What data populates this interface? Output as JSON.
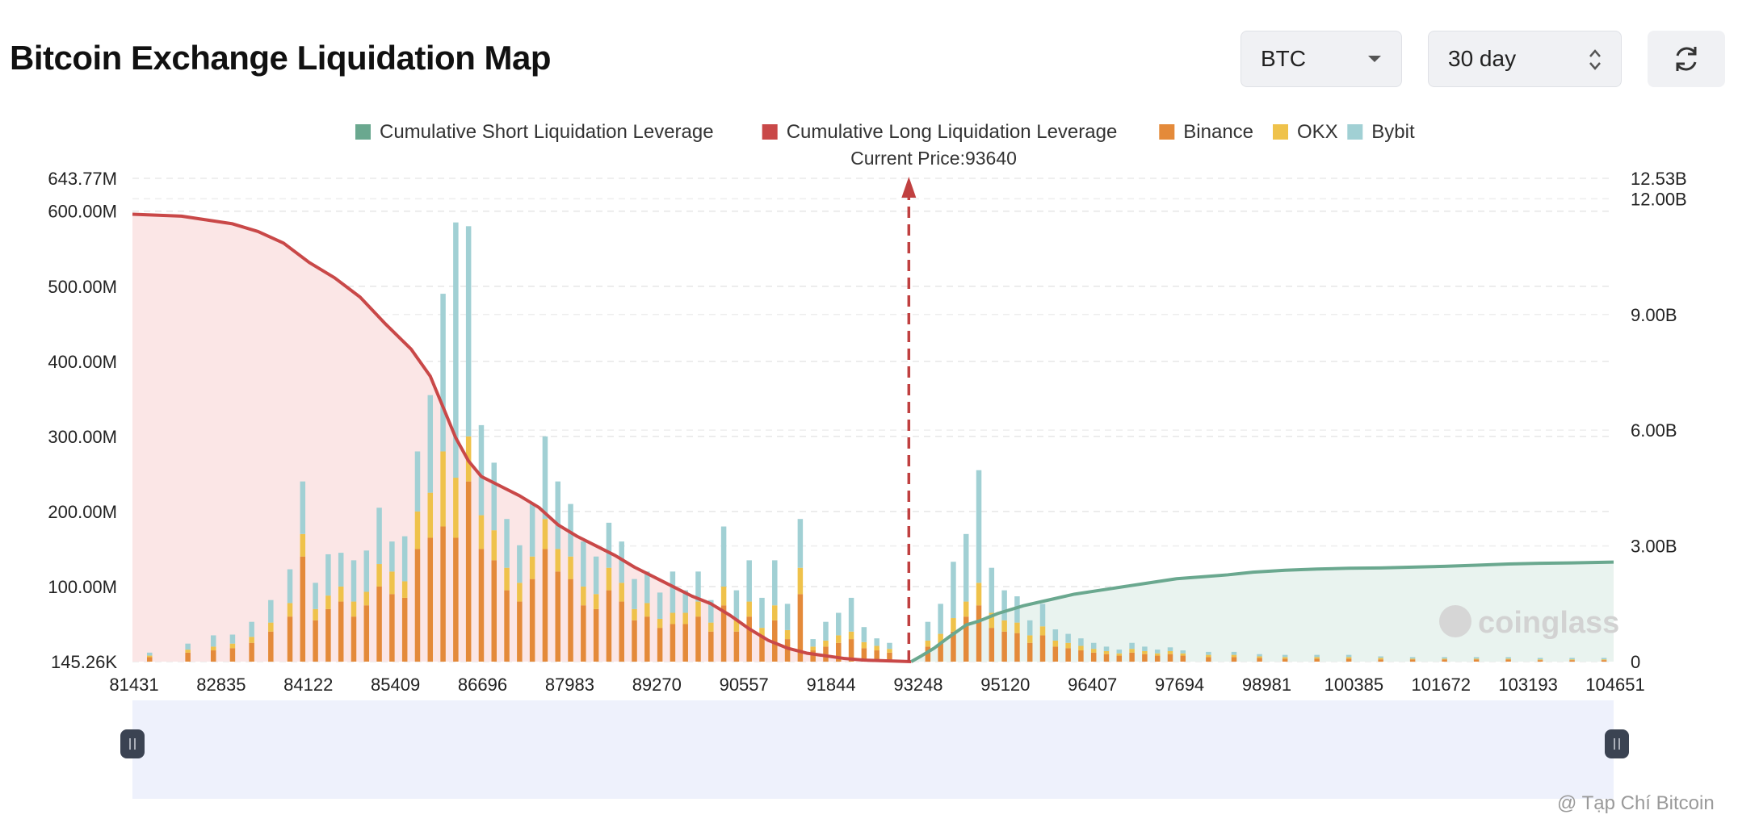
{
  "header": {
    "title": "Bitcoin Exchange Liquidation Map",
    "coin_select": {
      "value": "BTC",
      "icon": "chevron-down-icon"
    },
    "range_select": {
      "value": "30 day",
      "icon": "up-down-stepper-icon"
    },
    "refresh_icon": "refresh-icon"
  },
  "watermark": {
    "text": "@ Tạp Chí Bitcoin"
  },
  "chart_logo": {
    "text": "coinglass"
  },
  "colors": {
    "short": "#6aa88f",
    "long": "#c94848",
    "binance": "#e48a3a",
    "okx": "#efc24b",
    "bybit": "#a1d0d4",
    "long_fill": "#fbe6e6",
    "short_fill": "#e9f3ef",
    "zoom_bg": "#eef1fc",
    "handle": "#3b4352"
  },
  "chart_data": {
    "type": "bar",
    "title": "",
    "current_price_label": "Current Price:93640",
    "current_price": 93640,
    "legend": [
      {
        "label": "Cumulative Short Liquidation Leverage",
        "color": "#6aa88f"
      },
      {
        "label": "Cumulative Long Liquidation Leverage",
        "color": "#c94848"
      },
      {
        "label": "Binance",
        "color": "#e48a3a"
      },
      {
        "label": "OKX",
        "color": "#efc24b"
      },
      {
        "label": "Bybit",
        "color": "#a1d0d4"
      }
    ],
    "x_range": [
      81431,
      104651
    ],
    "x_ticks": [
      "81431",
      "82835",
      "84122",
      "85409",
      "86696",
      "87983",
      "89270",
      "90557",
      "91844",
      "93248",
      "95120",
      "96407",
      "97694",
      "98981",
      "100385",
      "101672",
      "103193",
      "104651"
    ],
    "y_left_range_millions": [
      0,
      643.77
    ],
    "y_left_ticks": [
      {
        "value": 0,
        "label": "145.26K"
      },
      {
        "value": 100,
        "label": "100.00M"
      },
      {
        "value": 200,
        "label": "200.00M"
      },
      {
        "value": 300,
        "label": "300.00M"
      },
      {
        "value": 400,
        "label": "400.00M"
      },
      {
        "value": 500,
        "label": "500.00M"
      },
      {
        "value": 600,
        "label": "600.00M"
      },
      {
        "value": 643.77,
        "label": "643.77M"
      }
    ],
    "y_right_range_billions": [
      0,
      12.53
    ],
    "y_right_ticks": [
      {
        "value": 0,
        "label": "0"
      },
      {
        "value": 3,
        "label": "3.00B"
      },
      {
        "value": 6,
        "label": "6.00B"
      },
      {
        "value": 9,
        "label": "9.00B"
      },
      {
        "value": 12,
        "label": "12.00B"
      },
      {
        "value": 12.53,
        "label": "12.53B"
      }
    ],
    "exchange_bars_millions": {
      "price_bins": [
        81700,
        82300,
        82700,
        83000,
        83300,
        83600,
        83900,
        84100,
        84300,
        84500,
        84700,
        84900,
        85100,
        85300,
        85500,
        85700,
        85900,
        86100,
        86300,
        86500,
        86700,
        86900,
        87100,
        87300,
        87500,
        87700,
        87900,
        88100,
        88300,
        88500,
        88700,
        88900,
        89100,
        89300,
        89500,
        89700,
        89900,
        90100,
        90300,
        90500,
        90700,
        90900,
        91100,
        91300,
        91500,
        91700,
        91900,
        92100,
        92300,
        92500,
        92700,
        92900,
        93100,
        93300,
        93900,
        94100,
        94300,
        94500,
        94700,
        94900,
        95100,
        95300,
        95500,
        95700,
        95900,
        96100,
        96300,
        96500,
        96700,
        96900,
        97100,
        97300,
        97500,
        97700,
        97900,
        98300,
        98700,
        99100,
        99500,
        100000,
        100500,
        101000,
        101500,
        102000,
        102500,
        103000,
        103500,
        104000,
        104500
      ],
      "binance": [
        6,
        12,
        15,
        18,
        25,
        40,
        60,
        140,
        55,
        70,
        80,
        60,
        75,
        100,
        90,
        85,
        150,
        165,
        180,
        165,
        240,
        150,
        135,
        95,
        80,
        110,
        150,
        120,
        110,
        75,
        70,
        95,
        80,
        55,
        60,
        45,
        50,
        50,
        60,
        40,
        75,
        40,
        60,
        35,
        55,
        30,
        90,
        15,
        20,
        25,
        30,
        18,
        15,
        12,
        20,
        25,
        40,
        60,
        75,
        45,
        40,
        38,
        25,
        35,
        20,
        18,
        15,
        12,
        10,
        8,
        12,
        10,
        8,
        10,
        8,
        6,
        6,
        5,
        4,
        4,
        4,
        3,
        3,
        3,
        3,
        3,
        2,
        2,
        2
      ],
      "okx": [
        2,
        4,
        5,
        6,
        8,
        12,
        18,
        30,
        15,
        18,
        20,
        20,
        18,
        30,
        30,
        22,
        50,
        60,
        100,
        80,
        60,
        45,
        40,
        30,
        25,
        30,
        40,
        30,
        30,
        25,
        20,
        30,
        25,
        15,
        18,
        12,
        15,
        15,
        20,
        12,
        25,
        15,
        20,
        10,
        20,
        12,
        35,
        5,
        8,
        10,
        10,
        8,
        6,
        5,
        8,
        12,
        18,
        20,
        30,
        20,
        15,
        14,
        10,
        12,
        8,
        7,
        6,
        5,
        4,
        3,
        5,
        4,
        3,
        4,
        3,
        3,
        3,
        2,
        2,
        2,
        2,
        2,
        1,
        1,
        1,
        1,
        1,
        1,
        1
      ],
      "bybit": [
        4,
        8,
        15,
        12,
        20,
        30,
        45,
        70,
        35,
        55,
        45,
        55,
        55,
        75,
        40,
        60,
        80,
        130,
        210,
        340,
        280,
        120,
        90,
        65,
        50,
        70,
        110,
        90,
        70,
        60,
        50,
        60,
        55,
        40,
        42,
        35,
        55,
        30,
        40,
        30,
        80,
        40,
        55,
        40,
        60,
        35,
        65,
        10,
        25,
        30,
        45,
        20,
        10,
        8,
        25,
        40,
        75,
        90,
        150,
        60,
        40,
        35,
        20,
        30,
        15,
        12,
        10,
        8,
        6,
        5,
        8,
        6,
        5,
        5,
        4,
        4,
        4,
        3,
        3,
        3,
        3,
        2,
        2,
        2,
        2,
        2,
        2,
        2,
        2
      ]
    },
    "cumulative_long_billions": {
      "x": [
        81431,
        82200,
        82600,
        83000,
        83400,
        83800,
        84200,
        84600,
        85000,
        85400,
        85800,
        86100,
        86300,
        86500,
        86700,
        86900,
        87200,
        87500,
        87800,
        88100,
        88400,
        88700,
        89000,
        89300,
        89600,
        89900,
        90200,
        90500,
        90800,
        91100,
        91400,
        91700,
        92000,
        92300,
        92600,
        92900,
        93248,
        93450,
        93640
      ],
      "y": [
        11.6,
        11.55,
        11.45,
        11.35,
        11.15,
        10.85,
        10.35,
        9.95,
        9.45,
        8.75,
        8.1,
        7.4,
        6.6,
        5.8,
        5.2,
        4.8,
        4.55,
        4.3,
        4.0,
        3.55,
        3.25,
        3.0,
        2.75,
        2.45,
        2.2,
        1.95,
        1.7,
        1.5,
        1.2,
        0.85,
        0.55,
        0.35,
        0.22,
        0.15,
        0.08,
        0.04,
        0.02,
        0.01,
        0
      ]
    },
    "cumulative_short_billions": {
      "x": [
        93640,
        93800,
        94000,
        94200,
        94500,
        94700,
        95000,
        95400,
        95800,
        96200,
        96600,
        97000,
        97400,
        97800,
        98200,
        98600,
        99000,
        99500,
        100000,
        100500,
        101000,
        101500,
        102000,
        102500,
        103000,
        103500,
        104000,
        104651
      ],
      "y": [
        0,
        0.15,
        0.35,
        0.6,
        0.95,
        1.05,
        1.25,
        1.45,
        1.6,
        1.75,
        1.85,
        1.95,
        2.05,
        2.15,
        2.2,
        2.25,
        2.32,
        2.37,
        2.4,
        2.42,
        2.43,
        2.45,
        2.47,
        2.5,
        2.53,
        2.55,
        2.56,
        2.58
      ]
    },
    "grid": true,
    "legend_position": "top-center"
  }
}
